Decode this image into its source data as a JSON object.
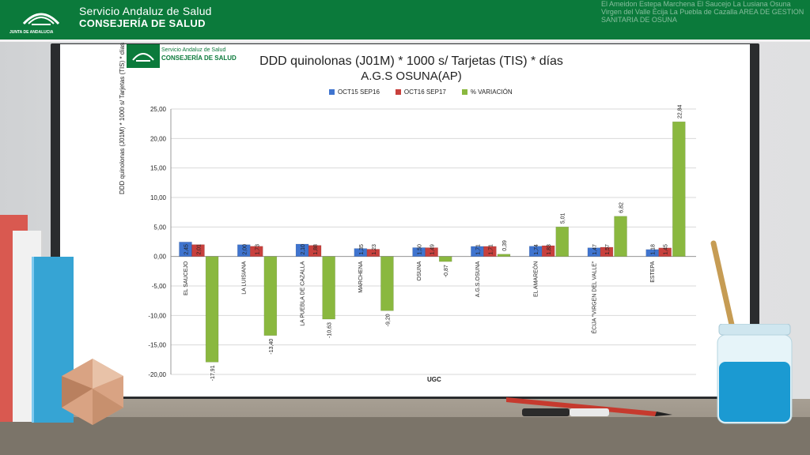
{
  "header": {
    "brand_line1": "Servicio Andaluz de Salud",
    "brand_line2": "CONSEJERÍA DE SALUD",
    "logo_caption": "JUNTA DE ANDALUCIA",
    "town_names": "El Ameidon Estepa Marchena El Saucejo La Lusiana Osuna Virgen del Valle Écija La Puebla de Cazalla AREA DE GESTION SANITARIA DE OSUNA"
  },
  "panel": {
    "mini_brand1": "Servicio Andaluz de Salud",
    "mini_brand2": "CONSEJERÍA DE SALUD"
  },
  "colors": {
    "green": "#0b7a3b",
    "series1": "#3f74cf",
    "series2": "#c8403d",
    "series3": "#8ab83f"
  },
  "chart_data": {
    "type": "bar",
    "title": "DDD quinolonas (J01M) * 1000 s/ Tarjetas (TIS) * días",
    "subtitle": "A.G.S OSUNA(AP)",
    "xlabel": "UGC",
    "ylabel": "DDD quinolonas (J01M) * 1000 s/ Tarjetas (TIS) * días",
    "ylim": [
      -20,
      25
    ],
    "ytick_labels": [
      "25,00",
      "20,00",
      "15,00",
      "10,00",
      "5,00",
      "0,00",
      "-5,00",
      "-10,00",
      "-15,00",
      "-20,00"
    ],
    "grid": true,
    "legend_position": "top",
    "categories": [
      "EL SAUCEJO",
      "LA LUISIANA",
      "LA PUEBLA DE CAZALLA",
      "MARCHENA",
      "OSUNA",
      "A.G.S.OSUNA",
      "EL AMAREÓN",
      "ÉCIJA \"VIRGEN DEL VALLE\"",
      "ESTEPA"
    ],
    "series": [
      {
        "name": "OCT15 SEP16",
        "values": [
          2.45,
          2.0,
          2.1,
          1.35,
          1.5,
          1.71,
          1.74,
          1.47,
          1.18
        ],
        "labels": [
          "2,45",
          "2,00",
          "2,10",
          "1,35",
          "1,50",
          "1,71",
          "1,74",
          "1,47",
          "1,18"
        ]
      },
      {
        "name": "OCT16 SEP17",
        "values": [
          2.01,
          1.73,
          1.88,
          1.23,
          1.49,
          1.71,
          1.83,
          1.57,
          1.45
        ],
        "labels": [
          "2,01",
          "1,73",
          "1,88",
          "1,23",
          "1,49",
          "1,71",
          "1,83",
          "1,57",
          "1,45"
        ]
      },
      {
        "name": "% VARIACIÓN",
        "values": [
          -17.91,
          -13.4,
          -10.63,
          -9.2,
          -0.87,
          0.39,
          5.01,
          6.82,
          22.84
        ],
        "labels": [
          "-17,91",
          "-13,40",
          "-10,63",
          "-9,20",
          "-0,87",
          "0,39",
          "5,01",
          "6,82",
          "22,84"
        ]
      }
    ]
  }
}
